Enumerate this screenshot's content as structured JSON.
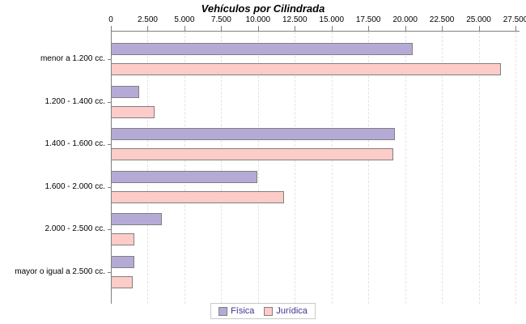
{
  "title": "Vehículos por Cilindrada",
  "chart_data": {
    "type": "bar",
    "orientation": "horizontal",
    "title": "Vehículos por Cilindrada",
    "categories": [
      "menor a 1.200 cc.",
      "1.200 - 1.400 cc.",
      "1.400 - 1.600 cc.",
      "1.600 - 2.000 cc.",
      "2.000 - 2.500 cc.",
      "mayor o igual a 2.500 cc."
    ],
    "series": [
      {
        "name": "Física",
        "color": "#b5aad6",
        "border_color": "#808080",
        "values": [
          20500,
          1950,
          19300,
          9950,
          3450,
          1580
        ]
      },
      {
        "name": "Jurídica",
        "color": "#fdccc8",
        "border_color": "#808080",
        "values": [
          26500,
          2950,
          19200,
          11750,
          1600,
          1500
        ]
      }
    ],
    "xlim": [
      0,
      27500
    ],
    "x_tick_step": 2500,
    "x_tick_labels": [
      "0",
      "2.500",
      "5.000",
      "7.500",
      "10.000",
      "12.500",
      "15.000",
      "17.500",
      "20.000",
      "22.500",
      "25.000",
      "27.500"
    ],
    "grid": "vertical dashed",
    "legend_position": "bottom-center"
  },
  "colors": {
    "axis": "#808080",
    "gridline": "#e2e2e2",
    "legend_text": "#44318d",
    "legend_border": "#c9c9c9",
    "title_text": "#000000",
    "background": "#ffffff"
  }
}
